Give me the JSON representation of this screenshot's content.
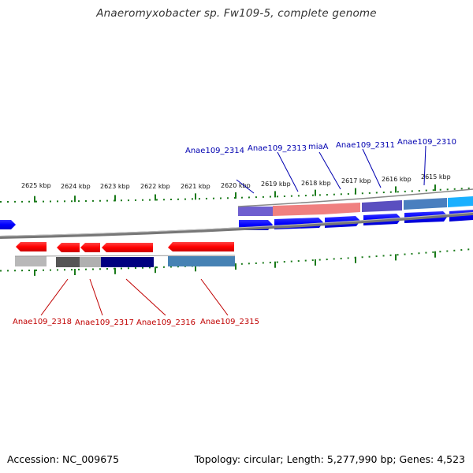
{
  "title": "Anaeromyxobacter sp. Fw109-5, complete genome",
  "footer": {
    "accession": "Accession: NC_009675",
    "topology": "Topology: circular; Length: 5,277,990 bp; Genes: 4,523"
  },
  "tick_labels": [
    "2625 kbp",
    "2624 kbp",
    "2623 kbp",
    "2622 kbp",
    "2621 kbp",
    "2620 kbp",
    "2619 kbp",
    "2618 kbp",
    "2617 kbp",
    "2616 kbp",
    "2615 kbp"
  ],
  "top_gene_labels": [
    "Anae109_2314",
    "Anae109_2313",
    "miaA",
    "Anae109_2311",
    "Anae109_2310"
  ],
  "bottom_gene_labels": [
    "Anae109_2318",
    "Anae109_2317",
    "Anae109_2316",
    "Anae109_2315"
  ],
  "colors": {
    "forward_gene": "#0000ff",
    "reverse_gene": "#ff0000",
    "top_label": "#0000b0",
    "bottom_label": "#c00000",
    "tick": "#1a7a1a",
    "backbone": "#808080"
  }
}
